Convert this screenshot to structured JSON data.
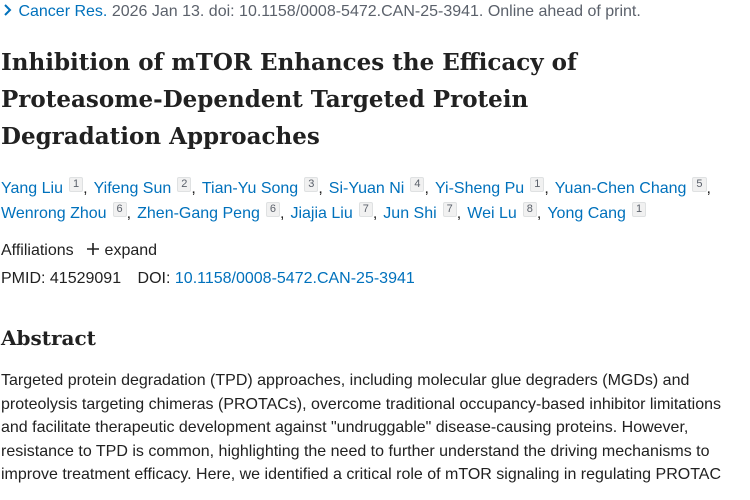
{
  "citation": {
    "journal": "Cancer Res.",
    "details": "2026 Jan 13. doi: 10.1158/0008-5472.CAN-25-3941. Online ahead of print."
  },
  "title_lines": [
    "Inhibition of mTOR Enhances the Efficacy of",
    "Proteasome-Dependent Targeted Protein",
    "Degradation Approaches"
  ],
  "authors": [
    {
      "name": "Yang Liu",
      "affiliation": 1
    },
    {
      "name": "Yifeng Sun",
      "affiliation": 2
    },
    {
      "name": "Tian-Yu Song",
      "affiliation": 3
    },
    {
      "name": "Si-Yuan Ni",
      "affiliation": 4
    },
    {
      "name": "Yi-Sheng Pu",
      "affiliation": 1
    },
    {
      "name": "Yuan-Chen Chang",
      "affiliation": 5
    },
    {
      "name": "Wenrong Zhou",
      "affiliation": 6
    },
    {
      "name": "Zhen-Gang Peng",
      "affiliation": 6
    },
    {
      "name": "Jiajia Liu",
      "affiliation": 7
    },
    {
      "name": "Jun Shi",
      "affiliation": 7
    },
    {
      "name": "Wei Lu",
      "affiliation": 8
    },
    {
      "name": "Yong Cang",
      "affiliation": 1
    }
  ],
  "affiliations": {
    "label": "Affiliations",
    "toggle": "expand"
  },
  "identifiers": {
    "pmid_label": "PMID:",
    "pmid": "41529091",
    "doi_label": "DOI:",
    "doi": "10.1158/0008-5472.CAN-25-3941"
  },
  "abstract": {
    "heading": "Abstract",
    "lines": [
      "Targeted protein degradation (TPD) approaches, including molecular glue degraders (MGDs) and",
      "proteolysis targeting chimeras (PROTACs), overcome traditional occupancy-based inhibitor limitations",
      "and facilitate therapeutic development against \"undruggable\" disease-causing proteins. However,",
      "resistance to TPD is common, highlighting the need to further understand the driving mechanisms to",
      "improve treatment efficacy. Here, we identified a critical role of mTOR signaling in regulating PROTAC"
    ]
  }
}
